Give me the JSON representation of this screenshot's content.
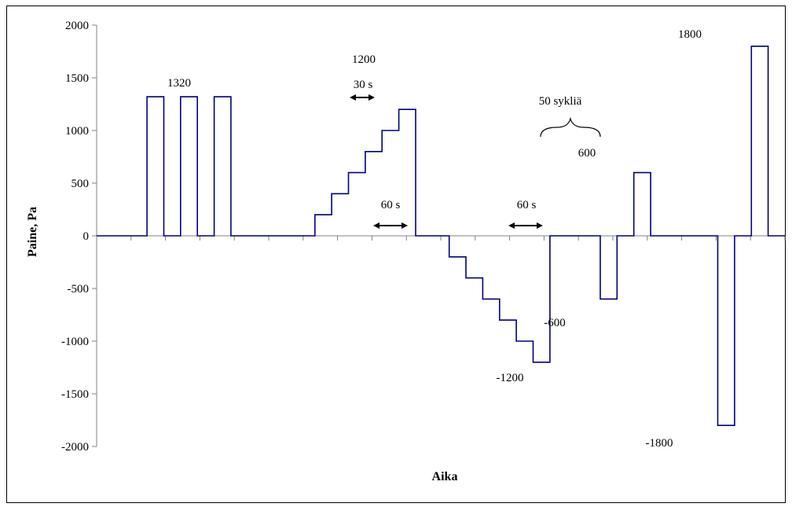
{
  "chart_data": {
    "type": "line",
    "title": "",
    "xlabel": "Aika",
    "ylabel": "Paine, Pa",
    "ylim": [
      -2000,
      2000
    ],
    "y_ticks": [
      2000,
      1500,
      1000,
      500,
      0,
      -500,
      -1000,
      -1500,
      -2000
    ],
    "grid": false,
    "legend": "none",
    "x_axis": {
      "tick_labels_shown": false,
      "major_tick_count": 20,
      "unit": "30 s"
    },
    "series": [
      {
        "step_values": [
          0,
          0,
          0,
          1320,
          0,
          1320,
          0,
          1320,
          0,
          0,
          0,
          0,
          0,
          200,
          400,
          600,
          800,
          1000,
          1200,
          0,
          0,
          -200,
          -400,
          -600,
          -800,
          -1000,
          -1200,
          0,
          0,
          0,
          -600,
          0,
          600,
          0,
          0,
          0,
          0,
          -1800,
          0,
          1800,
          0
        ]
      }
    ],
    "annotations": [
      {
        "id": "peak_1320",
        "text": "1320"
      },
      {
        "id": "peak_1200",
        "text": "1200"
      },
      {
        "id": "dur_30s",
        "text": "30 s",
        "arrow": true
      },
      {
        "id": "dur_60s_a",
        "text": "60 s",
        "arrow": true
      },
      {
        "id": "dur_60s_b",
        "text": "60 s",
        "arrow": true
      },
      {
        "id": "cycles",
        "text": "50 sykliä",
        "brace": true
      },
      {
        "id": "peak_600",
        "text": "600"
      },
      {
        "id": "peak_neg600",
        "text": "-600"
      },
      {
        "id": "peak_neg1200",
        "text": "-1200"
      },
      {
        "id": "peak_1800",
        "text": "1800"
      },
      {
        "id": "peak_neg1800",
        "text": "-1800"
      }
    ],
    "colors": {
      "series": "#000080",
      "axis": "#808080",
      "text": "#000000"
    }
  }
}
